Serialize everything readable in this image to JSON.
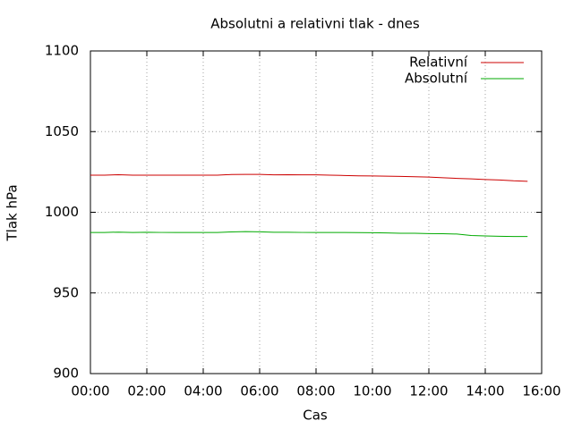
{
  "chart_data": {
    "type": "line",
    "title": "Absolutni a relativni tlak - dnes",
    "x_label": "Cas",
    "y_label": "Tlak hPa",
    "x": [
      0,
      0.5,
      1,
      1.5,
      2,
      2.5,
      3,
      3.5,
      4,
      4.5,
      5,
      5.5,
      6,
      6.5,
      7,
      7.5,
      8,
      8.5,
      9,
      9.5,
      10,
      10.5,
      11,
      11.5,
      12,
      12.5,
      13,
      13.5,
      14,
      14.5,
      15,
      15.5
    ],
    "series": [
      {
        "name": "Relativní",
        "color": "#cc0000",
        "values": [
          1023,
          1023,
          1023.3,
          1023,
          1023,
          1023,
          1023,
          1023,
          1023,
          1023,
          1023.4,
          1023.5,
          1023.5,
          1023.2,
          1023.3,
          1023.2,
          1023.2,
          1023,
          1022.8,
          1022.6,
          1022.5,
          1022.4,
          1022.2,
          1022,
          1021.8,
          1021.4,
          1021,
          1020.7,
          1020.3,
          1020,
          1019.5,
          1019.2
        ]
      },
      {
        "name": "Absolutní",
        "color": "#00aa00",
        "values": [
          987.5,
          987.5,
          987.7,
          987.5,
          987.6,
          987.5,
          987.5,
          987.5,
          987.5,
          987.5,
          987.8,
          988,
          987.9,
          987.6,
          987.6,
          987.5,
          987.5,
          987.5,
          987.5,
          987.4,
          987.3,
          987.2,
          987,
          987,
          986.8,
          986.7,
          986.5,
          985.6,
          985.3,
          985.1,
          985,
          985
        ]
      }
    ],
    "xlim": [
      0,
      16
    ],
    "xticks": [
      {
        "value": 0,
        "label": "00:00"
      },
      {
        "value": 2,
        "label": "02:00"
      },
      {
        "value": 4,
        "label": "04:00"
      },
      {
        "value": 6,
        "label": "06:00"
      },
      {
        "value": 8,
        "label": "08:00"
      },
      {
        "value": 10,
        "label": "10:00"
      },
      {
        "value": 12,
        "label": "12:00"
      },
      {
        "value": 14,
        "label": "14:00"
      },
      {
        "value": 16,
        "label": "16:00"
      }
    ],
    "ylim": [
      900,
      1100
    ],
    "yticks": [
      900,
      950,
      1000,
      1050,
      1100
    ],
    "grid": true,
    "legend": "top-right"
  }
}
